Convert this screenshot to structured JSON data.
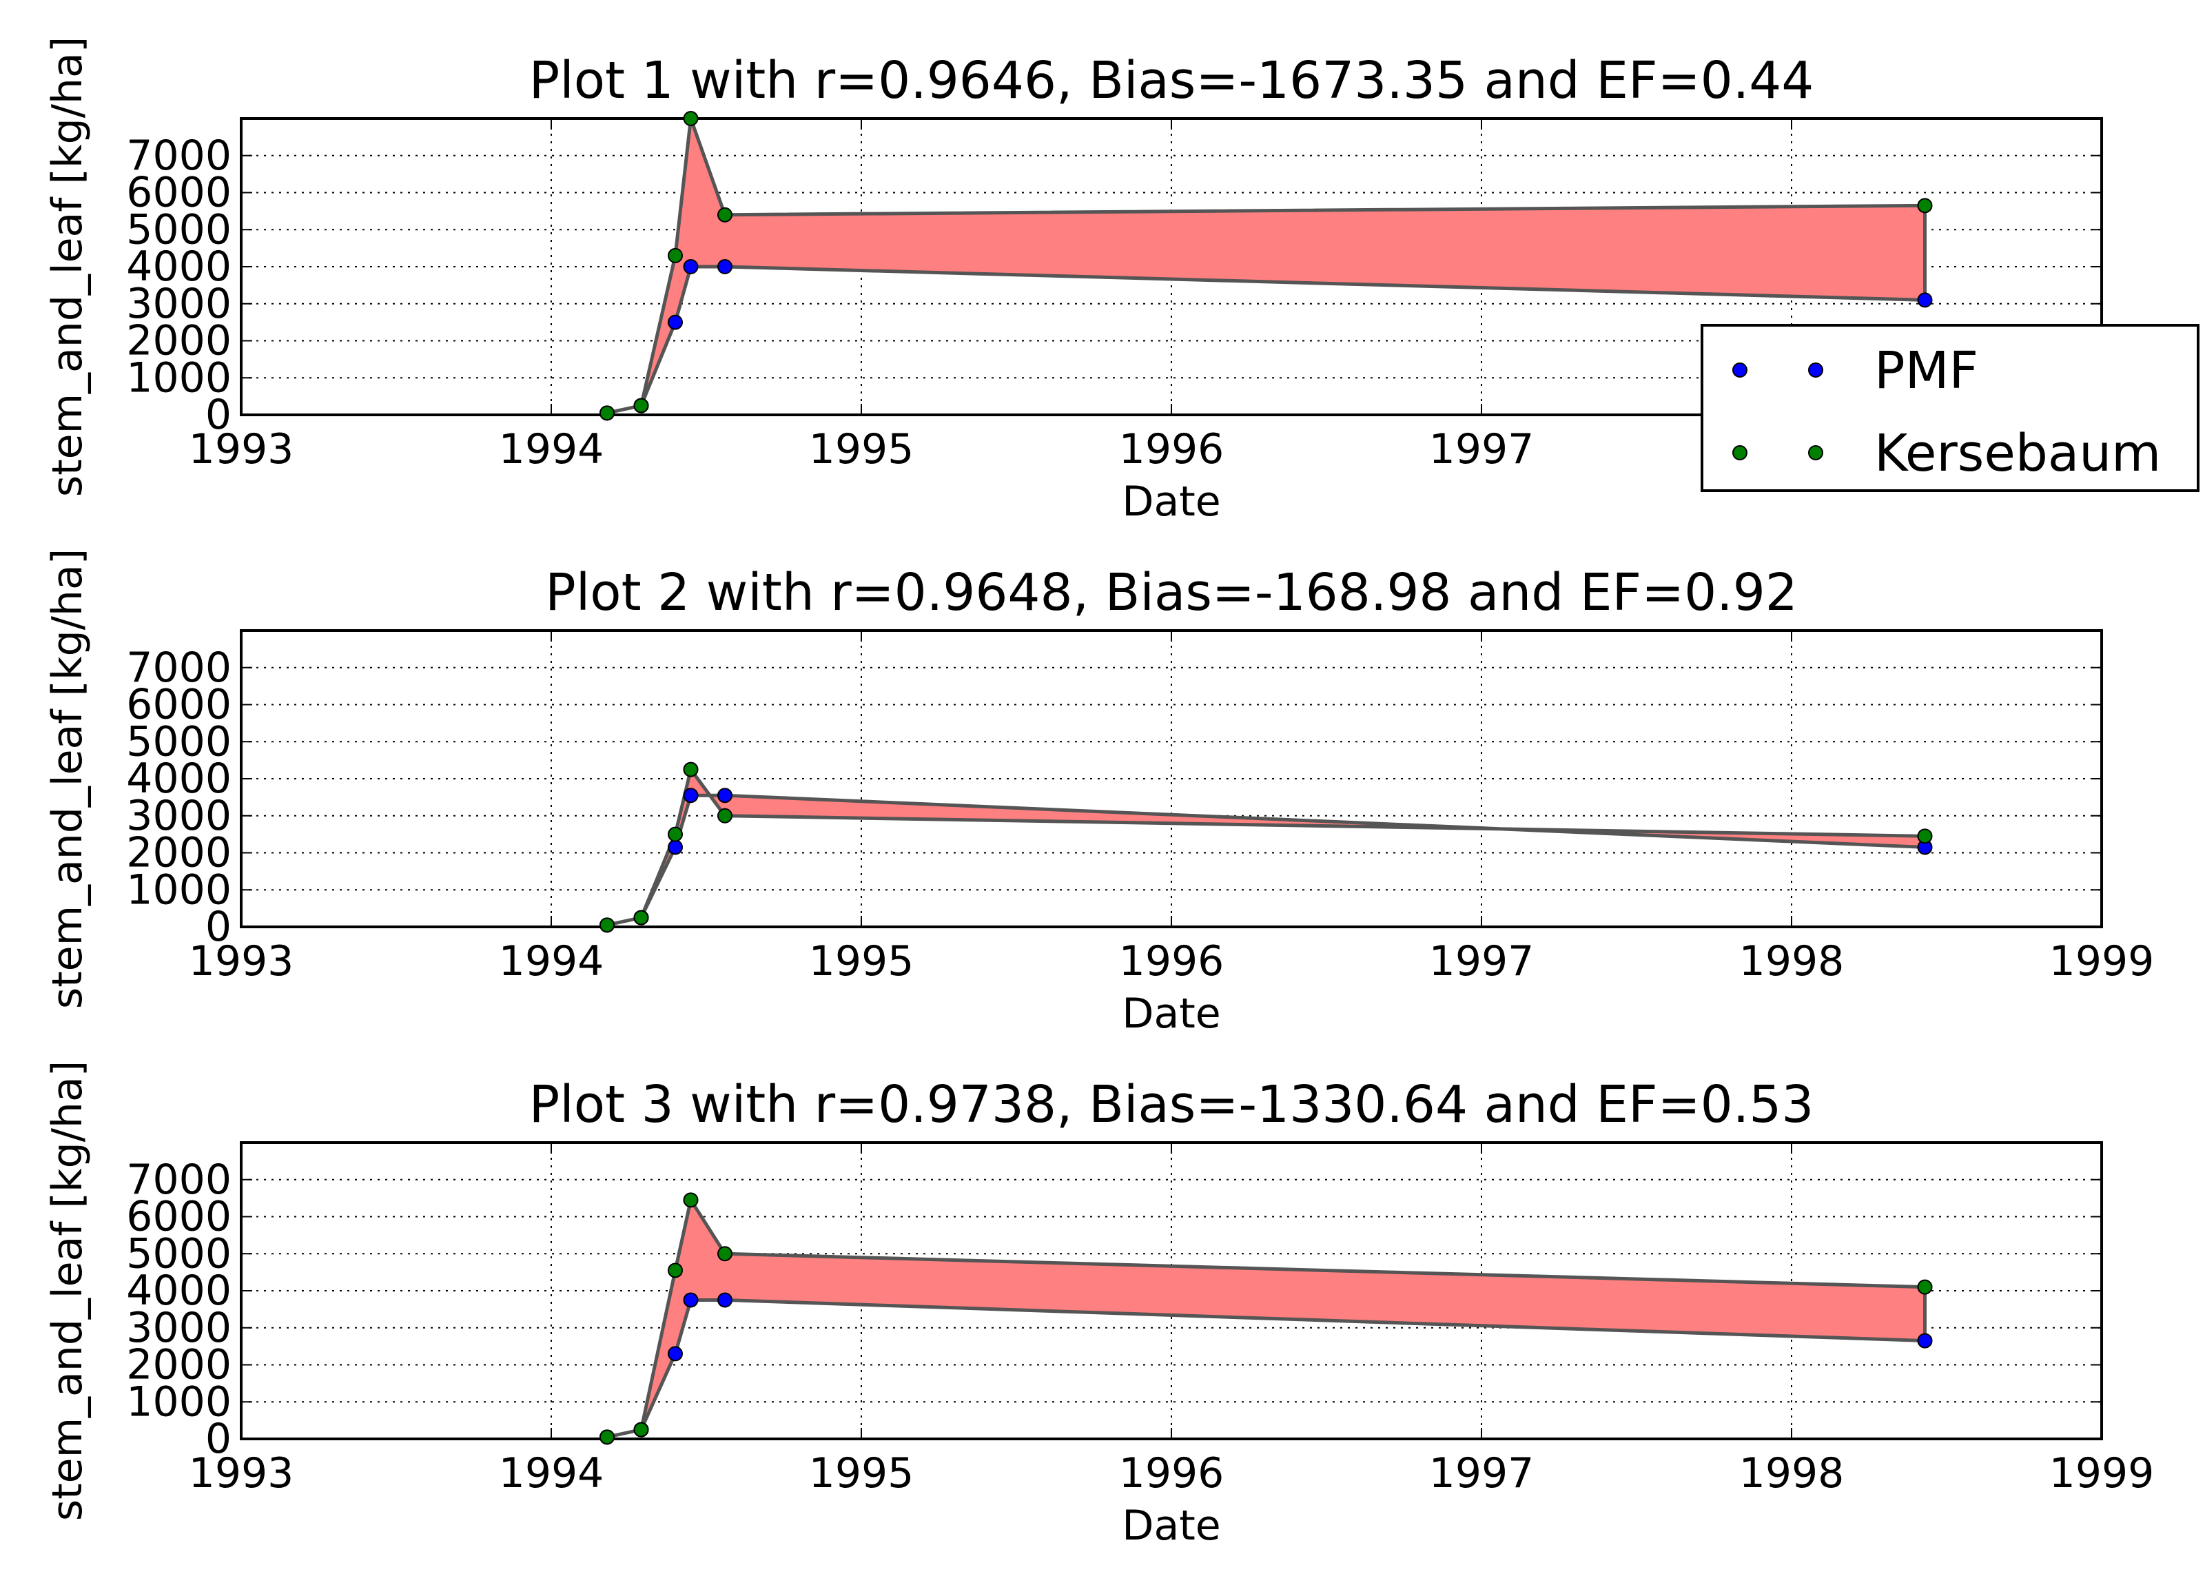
{
  "chart_data": [
    {
      "type": "scatter",
      "title": "Plot 1 with r=0.9646, Bias=-1673.35 and EF=0.44",
      "xlabel": "Date",
      "ylabel": "stem_and_leaf [kg/ha]",
      "xlim": [
        1993,
        1999
      ],
      "ylim": [
        0,
        8000
      ],
      "xticks": [
        "1993",
        "1994",
        "1995",
        "1996",
        "1997",
        "1998",
        "1999"
      ],
      "yticks": [
        "0",
        "1000",
        "2000",
        "3000",
        "4000",
        "5000",
        "6000",
        "7000"
      ],
      "grid": true,
      "fill_between": true,
      "legend": true,
      "legend_position": "right",
      "x": [
        1994.18,
        1994.29,
        1994.4,
        1994.45,
        1994.56,
        1998.43
      ],
      "series": [
        {
          "name": "PMF",
          "color": "#0000ff",
          "values": [
            50,
            250,
            2500,
            4000,
            4000,
            3100
          ]
        },
        {
          "name": "Kersebaum",
          "color": "#008000",
          "values": [
            50,
            250,
            4300,
            8000,
            5400,
            5650
          ]
        }
      ]
    },
    {
      "type": "scatter",
      "title": "Plot 2 with r=0.9648, Bias=-168.98 and EF=0.92",
      "xlabel": "Date",
      "ylabel": "stem_and_leaf [kg/ha]",
      "xlim": [
        1993,
        1999
      ],
      "ylim": [
        0,
        8000
      ],
      "xticks": [
        "1993",
        "1994",
        "1995",
        "1996",
        "1997",
        "1998",
        "1999"
      ],
      "yticks": [
        "0",
        "1000",
        "2000",
        "3000",
        "4000",
        "5000",
        "6000",
        "7000"
      ],
      "grid": true,
      "fill_between": true,
      "legend": false,
      "x": [
        1994.18,
        1994.29,
        1994.4,
        1994.45,
        1994.56,
        1998.43
      ],
      "series": [
        {
          "name": "PMF",
          "color": "#0000ff",
          "values": [
            50,
            250,
            2150,
            3550,
            3550,
            2150
          ]
        },
        {
          "name": "Kersebaum",
          "color": "#008000",
          "values": [
            50,
            250,
            2500,
            4250,
            3000,
            2450
          ]
        }
      ]
    },
    {
      "type": "scatter",
      "title": "Plot 3 with r=0.9738, Bias=-1330.64 and EF=0.53",
      "xlabel": "Date",
      "ylabel": "stem_and_leaf [kg/ha]",
      "xlim": [
        1993,
        1999
      ],
      "ylim": [
        0,
        8000
      ],
      "xticks": [
        "1993",
        "1994",
        "1995",
        "1996",
        "1997",
        "1998",
        "1999"
      ],
      "yticks": [
        "0",
        "1000",
        "2000",
        "3000",
        "4000",
        "5000",
        "6000",
        "7000"
      ],
      "grid": true,
      "fill_between": true,
      "legend": false,
      "x": [
        1994.18,
        1994.29,
        1994.4,
        1994.45,
        1994.56,
        1998.43
      ],
      "series": [
        {
          "name": "PMF",
          "color": "#0000ff",
          "values": [
            50,
            250,
            2300,
            3750,
            3750,
            2650
          ]
        },
        {
          "name": "Kersebaum",
          "color": "#008000",
          "values": [
            50,
            250,
            4550,
            6450,
            5000,
            4100
          ]
        }
      ]
    }
  ],
  "colors": {
    "fill": "#ff8080",
    "fill_edge": "#555555",
    "grid": "#000000",
    "axes": "#000000"
  }
}
